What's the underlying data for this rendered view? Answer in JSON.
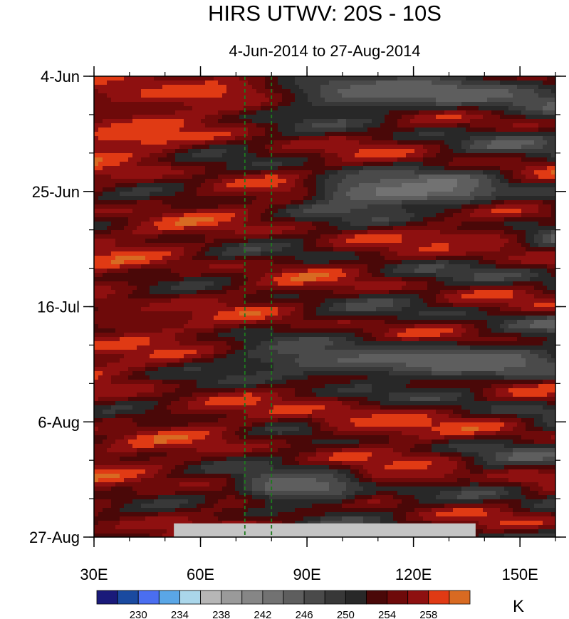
{
  "chart_data": {
    "type": "heatmap",
    "title": "HIRS UTWV: 20S - 10S",
    "subtitle": "4-Jun-2014 to 27-Aug-2014",
    "xlabel": "",
    "ylabel": "",
    "x_range": [
      30,
      160
    ],
    "y_range_days": [
      0,
      84
    ],
    "x_ticks": [
      {
        "value": 30,
        "label": "30E"
      },
      {
        "value": 60,
        "label": "60E"
      },
      {
        "value": 90,
        "label": "90E"
      },
      {
        "value": 120,
        "label": "120E"
      },
      {
        "value": 150,
        "label": "150E"
      }
    ],
    "x_minor_step": 10,
    "y_ticks": [
      {
        "day": 0,
        "label": "4-Jun"
      },
      {
        "day": 21,
        "label": "25-Jun"
      },
      {
        "day": 42,
        "label": "16-Jul"
      },
      {
        "day": 63,
        "label": "6-Aug"
      },
      {
        "day": 84,
        "label": "27-Aug"
      }
    ],
    "y_minor_step_days": 7,
    "reference_lines_lon": [
      72.5,
      80
    ],
    "missing_data": {
      "lon_range": [
        52.5,
        137.5
      ],
      "day_range": [
        81.5,
        84
      ]
    },
    "colorbar": {
      "unit": "K",
      "levels": [
        228,
        230,
        232,
        234,
        236,
        238,
        240,
        242,
        244,
        246,
        248,
        250,
        252,
        254,
        256,
        258,
        260
      ],
      "labels": [
        {
          "value": 230,
          "label": "230"
        },
        {
          "value": 234,
          "label": "234"
        },
        {
          "value": 238,
          "label": "238"
        },
        {
          "value": 242,
          "label": "242"
        },
        {
          "value": 246,
          "label": "246"
        },
        {
          "value": 250,
          "label": "250"
        },
        {
          "value": 254,
          "label": "254"
        },
        {
          "value": 258,
          "label": "258"
        }
      ],
      "colors": [
        "#1a1a7a",
        "#1a4aa0",
        "#4a6ef0",
        "#5aa6e6",
        "#aad6ea",
        "#b6b6b6",
        "#9a9a9a",
        "#868686",
        "#727272",
        "#5e5e5e",
        "#4a4a4a",
        "#383838",
        "#282828",
        "#4a0808",
        "#6e0a0a",
        "#8e1010",
        "#e03a14",
        "#d86a22"
      ]
    },
    "field_description_bands": [
      {
        "day_center": 3,
        "lon_from": 30,
        "lon_to": 75,
        "value": 259
      },
      {
        "day_center": 3,
        "lon_from": 85,
        "lon_to": 160,
        "value": 244
      },
      {
        "day_center": 11,
        "lon_from": 30,
        "lon_to": 50,
        "value": 259
      },
      {
        "day_center": 21,
        "lon_from": 95,
        "lon_to": 140,
        "value": 242
      },
      {
        "day_center": 30,
        "lon_from": 120,
        "lon_to": 150,
        "value": 258
      },
      {
        "day_center": 44,
        "lon_from": 30,
        "lon_to": 60,
        "value": 256
      },
      {
        "day_center": 52,
        "lon_from": 75,
        "lon_to": 160,
        "value": 244
      },
      {
        "day_center": 63,
        "lon_from": 95,
        "lon_to": 125,
        "value": 259
      },
      {
        "day_center": 72,
        "lon_from": 110,
        "lon_to": 130,
        "value": 258
      },
      {
        "day_center": 75,
        "lon_from": 75,
        "lon_to": 100,
        "value": 243
      }
    ]
  }
}
